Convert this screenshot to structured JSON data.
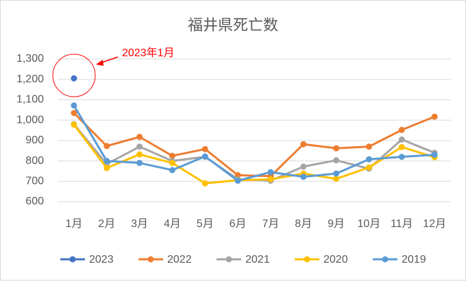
{
  "chart_data": {
    "type": "line",
    "title": "福井県死亡数",
    "categories": [
      "1月",
      "2月",
      "3月",
      "4月",
      "5月",
      "6月",
      "7月",
      "8月",
      "9月",
      "10月",
      "11月",
      "12月"
    ],
    "series": [
      {
        "name": "2023",
        "color": "#4472c4",
        "values": [
          1205,
          null,
          null,
          null,
          null,
          null,
          null,
          null,
          null,
          null,
          null,
          null
        ]
      },
      {
        "name": "2022",
        "color": "#ed7d31",
        "values": [
          1035,
          873,
          918,
          825,
          858,
          730,
          725,
          882,
          862,
          870,
          952,
          1017
        ]
      },
      {
        "name": "2021",
        "color": "#a5a5a5",
        "values": [
          980,
          785,
          870,
          800,
          820,
          710,
          703,
          772,
          803,
          762,
          905,
          840
        ]
      },
      {
        "name": "2020",
        "color": "#ffc000",
        "values": [
          978,
          765,
          832,
          790,
          690,
          705,
          710,
          738,
          712,
          768,
          868,
          818
        ]
      },
      {
        "name": "2019",
        "color": "#5b9bd5",
        "values": [
          1072,
          800,
          790,
          755,
          822,
          703,
          745,
          722,
          738,
          808,
          820,
          830
        ]
      }
    ],
    "ylim": [
      600,
      1300
    ],
    "yticks": [
      600,
      700,
      800,
      900,
      {
        "value": 1000,
        "label": "1,000"
      },
      {
        "value": 1100,
        "label": "1,100"
      },
      {
        "value": 1200,
        "label": "1,200"
      },
      {
        "value": 1300,
        "label": "1,300"
      }
    ],
    "grid": true,
    "legend": "bottom",
    "annotation": {
      "text": "2023年1月",
      "color": "#ff0000"
    }
  }
}
